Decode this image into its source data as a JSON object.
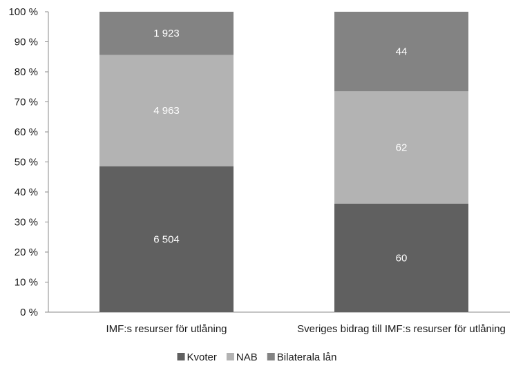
{
  "chart_data": {
    "type": "bar",
    "stacked": true,
    "normalized": true,
    "categories": [
      "IMF:s resurser för utlåning",
      "Sveriges bidrag till IMF:s resurser för utlåning"
    ],
    "series": [
      {
        "name": "Kvoter",
        "values": [
          6504,
          60
        ],
        "labels": [
          "6 504",
          "60"
        ],
        "color": "#606060"
      },
      {
        "name": "NAB",
        "values": [
          4963,
          62
        ],
        "labels": [
          "4 963",
          "62"
        ],
        "color": "#b3b3b3"
      },
      {
        "name": "Bilaterala lån",
        "values": [
          1923,
          44
        ],
        "labels": [
          "1 923",
          "44"
        ],
        "color": "#838383"
      }
    ],
    "yticks": [
      "0 %",
      "10 %",
      "20 %",
      "30 %",
      "40 %",
      "50 %",
      "60 %",
      "70 %",
      "80 %",
      "90 %",
      "100 %"
    ],
    "ylim": [
      0,
      100
    ],
    "grid": false,
    "legend": "bottom-center"
  }
}
